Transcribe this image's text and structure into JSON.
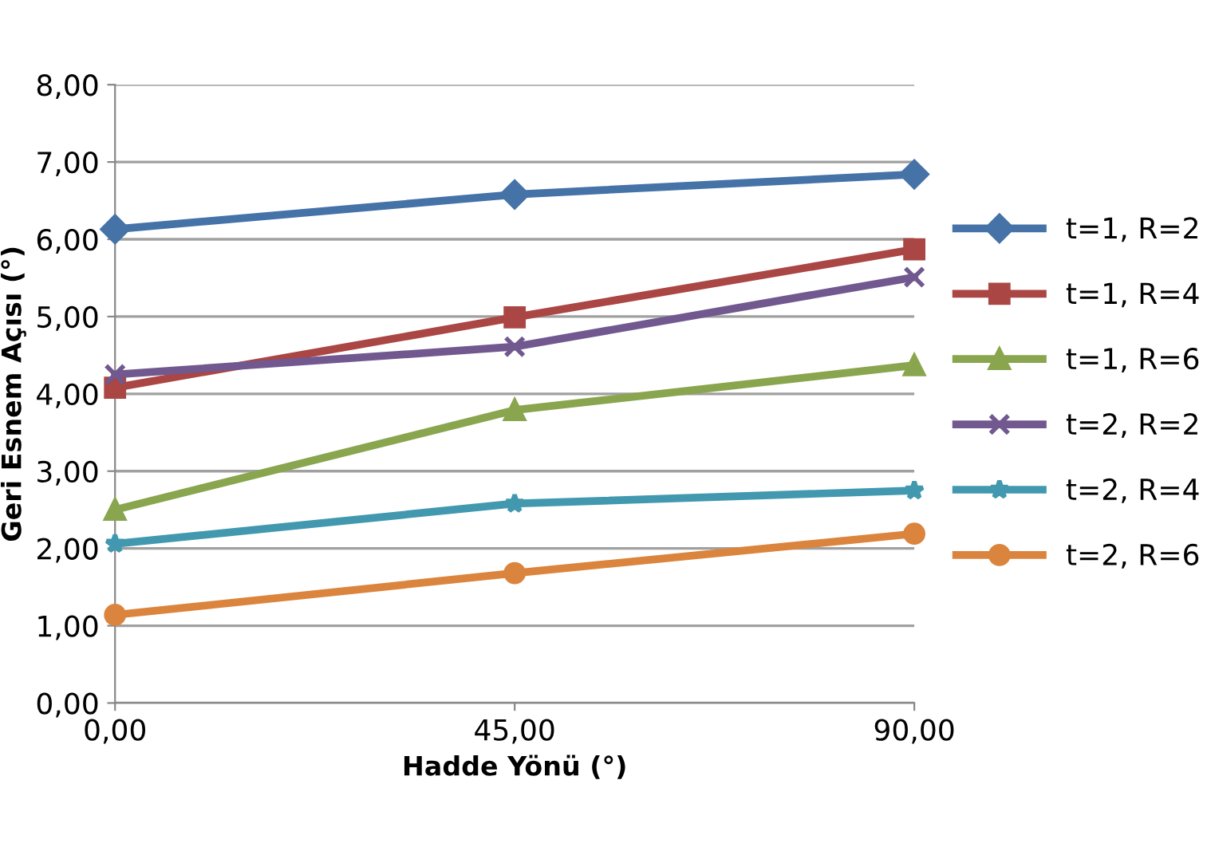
{
  "chart_data": {
    "type": "line",
    "xlabel": "Hadde Yönü (°)",
    "ylabel": "Geri Esnem Açısı (°)",
    "x": [
      0,
      45,
      90
    ],
    "xlim": [
      0,
      90
    ],
    "xticks": [
      {
        "value": 0,
        "label": "0,00"
      },
      {
        "value": 45,
        "label": "45,00"
      },
      {
        "value": 90,
        "label": "90,00"
      }
    ],
    "ylim": [
      0,
      8
    ],
    "yticks": [
      {
        "value": 0,
        "label": "0,00"
      },
      {
        "value": 1,
        "label": "1,00"
      },
      {
        "value": 2,
        "label": "2,00"
      },
      {
        "value": 3,
        "label": "3,00"
      },
      {
        "value": 4,
        "label": "4,00"
      },
      {
        "value": 5,
        "label": "5,00"
      },
      {
        "value": 6,
        "label": "6,00"
      },
      {
        "value": 7,
        "label": "7,00"
      },
      {
        "value": 8,
        "label": "8,00"
      }
    ],
    "grid": "y",
    "legend": "right",
    "line_style": "solid",
    "series": [
      {
        "name": "t=1, R=2",
        "color": "#4572a7",
        "marker": "diamond",
        "values": [
          6.13,
          6.58,
          6.84
        ]
      },
      {
        "name": "t=1, R=4",
        "color": "#aa4643",
        "marker": "square",
        "values": [
          4.08,
          4.99,
          5.87
        ]
      },
      {
        "name": "t=1, R=6",
        "color": "#89a54e",
        "marker": "triangle",
        "values": [
          2.5,
          3.79,
          4.37
        ]
      },
      {
        "name": "t=2, R=2",
        "color": "#71588f",
        "marker": "cross",
        "values": [
          4.25,
          4.61,
          5.51
        ]
      },
      {
        "name": "t=2, R=4",
        "color": "#4198af",
        "marker": "star",
        "values": [
          2.06,
          2.58,
          2.75
        ]
      },
      {
        "name": "t=2, R=6",
        "color": "#db843d",
        "marker": "circle",
        "values": [
          1.14,
          1.68,
          2.19
        ]
      }
    ]
  }
}
